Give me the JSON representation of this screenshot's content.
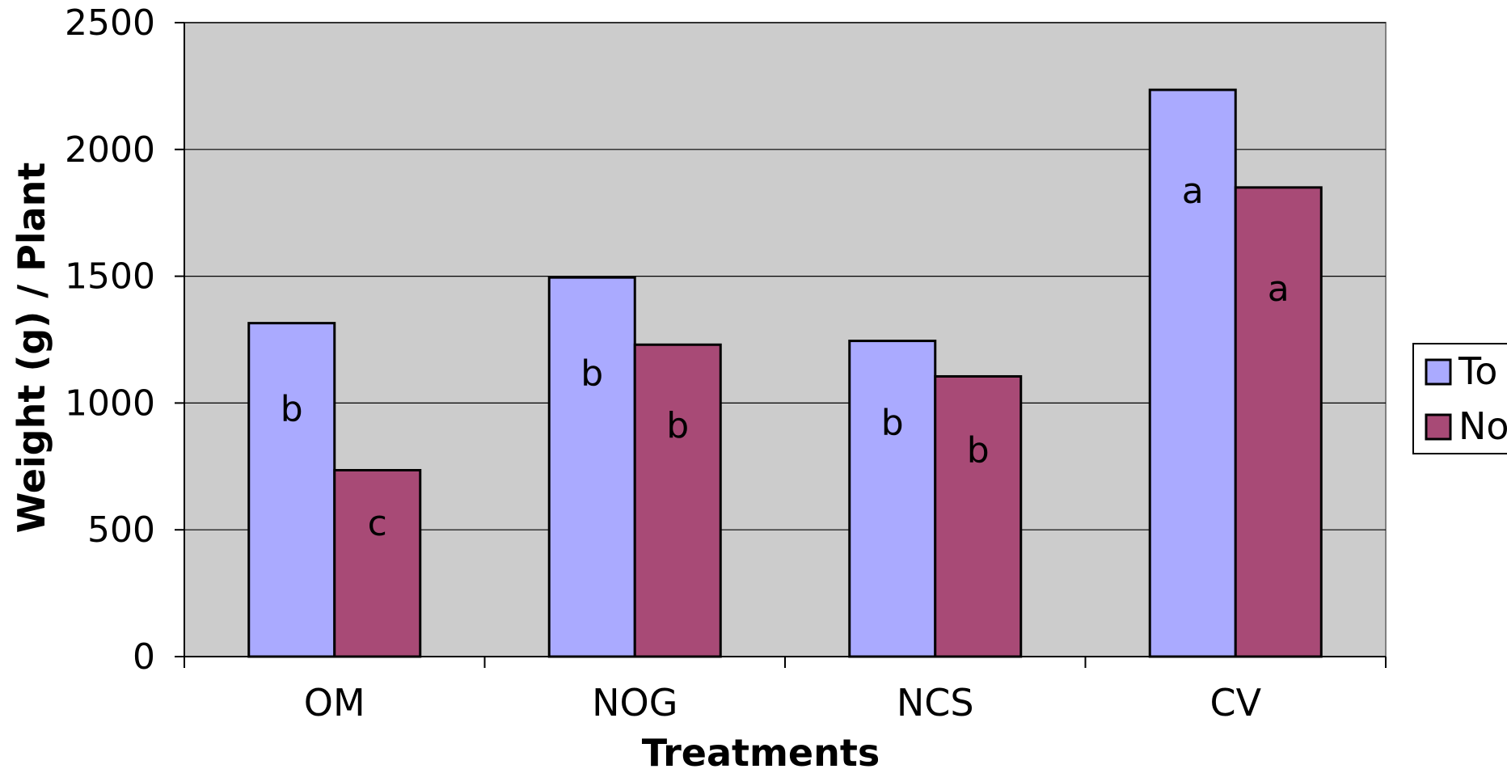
{
  "chart_data": {
    "type": "bar",
    "title": "",
    "xlabel": "Treatments",
    "ylabel": "Weight (g) / Plant",
    "ylim": [
      0,
      2500
    ],
    "yticks": [
      0,
      500,
      1000,
      1500,
      2000,
      2500
    ],
    "categories": [
      "OM",
      "NOG",
      "NCS",
      "CV"
    ],
    "series": [
      {
        "name": "To",
        "color": "#aaaaff",
        "values": [
          1315,
          1495,
          1245,
          2235
        ],
        "letters": [
          "b",
          "b",
          "b",
          "a"
        ]
      },
      {
        "name": "No",
        "color": "#a84a76",
        "values": [
          735,
          1230,
          1105,
          1850
        ],
        "letters": [
          "c",
          "b",
          "b",
          "a"
        ]
      }
    ],
    "plot_background": "#cccccc",
    "grid": true,
    "legend_position": "right"
  }
}
